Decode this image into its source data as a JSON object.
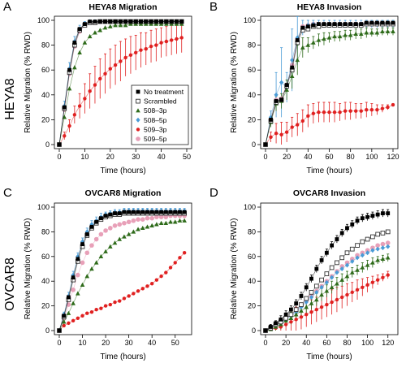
{
  "row_labels": [
    "HEYA8",
    "OVCAR8"
  ],
  "legend_labels": [
    "No treatment",
    "Scrambled",
    "508–3p",
    "508–5p",
    "509–3p",
    "509–5p"
  ],
  "colors": {
    "No treatment": "#000000",
    "Scrambled": "#333333",
    "508–3p": "#2e6b1a",
    "508–5p": "#4a9bd6",
    "509–3p": "#e02020",
    "509–5p": "#e8a0b8"
  },
  "chart_data": [
    {
      "type": "line",
      "panel": "A",
      "title": "HEYA8 Migration",
      "xlabel": "Time (hours)",
      "ylabel": "Relative Migration (% RWD)",
      "xlim": [
        0,
        50
      ],
      "ylim": [
        0,
        100
      ],
      "xticks": [
        0,
        10,
        20,
        30,
        40,
        50
      ],
      "yticks": [
        0,
        20,
        40,
        60,
        80,
        100
      ],
      "x": [
        0,
        2,
        4,
        6,
        8,
        10,
        12,
        14,
        16,
        18,
        20,
        22,
        24,
        26,
        28,
        30,
        32,
        34,
        36,
        38,
        40,
        42,
        44,
        46,
        48
      ],
      "series": [
        {
          "name": "No treatment",
          "values": [
            0,
            30,
            60,
            82,
            93,
            97,
            99,
            99,
            99,
            99,
            99,
            99,
            99,
            99,
            99,
            99,
            99,
            99,
            99,
            99,
            99,
            99,
            99,
            99,
            99
          ]
        },
        {
          "name": "Scrambled",
          "values": [
            0,
            29,
            58,
            80,
            92,
            96,
            98,
            98,
            99,
            99,
            99,
            99,
            99,
            99,
            99,
            99,
            99,
            99,
            99,
            99,
            99,
            99,
            99,
            99,
            99
          ]
        },
        {
          "name": "508–3p",
          "values": [
            0,
            22,
            45,
            62,
            74,
            82,
            87,
            90,
            92,
            94,
            95,
            96,
            96,
            96,
            97,
            97,
            97,
            97,
            97,
            97,
            97,
            97,
            97,
            97,
            97
          ]
        },
        {
          "name": "508–5p",
          "values": [
            0,
            31,
            61,
            83,
            93,
            97,
            99,
            99,
            99,
            99,
            99,
            99,
            99,
            99,
            99,
            99,
            99,
            99,
            99,
            99,
            99,
            99,
            99,
            99,
            99
          ]
        },
        {
          "name": "509–3p",
          "values": [
            0,
            7,
            15,
            24,
            31,
            37,
            43,
            48,
            53,
            57,
            61,
            64,
            67,
            70,
            72,
            74,
            76,
            77,
            79,
            80,
            82,
            83,
            84,
            85,
            86
          ]
        },
        {
          "name": "509–5p",
          "values": [
            0,
            28,
            57,
            79,
            91,
            96,
            98,
            98,
            99,
            99,
            99,
            99,
            99,
            99,
            99,
            99,
            99,
            99,
            99,
            99,
            99,
            99,
            99,
            99,
            99
          ]
        }
      ],
      "errors": [
        {
          "name": "508–5p",
          "values": [
            0,
            4,
            5,
            4,
            3,
            2,
            1,
            1,
            1,
            1,
            1,
            1,
            1,
            1,
            1,
            1,
            1,
            1,
            1,
            1,
            1,
            1,
            1,
            1,
            1
          ]
        },
        {
          "name": "509–3p",
          "values": [
            0,
            3,
            5,
            7,
            10,
            12,
            14,
            15,
            16,
            16,
            16,
            16,
            16,
            15,
            15,
            14,
            14,
            13,
            13,
            13,
            12,
            12,
            12,
            12,
            12
          ]
        }
      ],
      "legend": "bottom-right"
    },
    {
      "type": "line",
      "panel": "B",
      "title": "HEYA8 Invasion",
      "xlabel": "Time (hours)",
      "ylabel": "Relative Migration (% RWD)",
      "xlim": [
        0,
        120
      ],
      "ylim": [
        0,
        100
      ],
      "xticks": [
        0,
        20,
        40,
        60,
        80,
        100,
        120
      ],
      "yticks": [
        0,
        20,
        40,
        60,
        80,
        100
      ],
      "x": [
        0,
        5,
        10,
        15,
        20,
        25,
        30,
        35,
        40,
        45,
        50,
        55,
        60,
        65,
        70,
        75,
        80,
        85,
        90,
        95,
        100,
        105,
        110,
        115,
        120
      ],
      "series": [
        {
          "name": "No treatment",
          "values": [
            0,
            20,
            35,
            36,
            48,
            62,
            84,
            94,
            95,
            96,
            97,
            97,
            97,
            97,
            97,
            97,
            97,
            97,
            97,
            98,
            98,
            98,
            98,
            98,
            98
          ]
        },
        {
          "name": "Scrambled",
          "values": [
            0,
            19,
            34,
            36,
            47,
            60,
            82,
            92,
            93,
            95,
            95,
            96,
            96,
            96,
            96,
            96,
            96,
            96,
            96,
            97,
            97,
            97,
            97,
            97,
            97
          ]
        },
        {
          "name": "508–3p",
          "values": [
            0,
            18,
            33,
            35,
            44,
            55,
            68,
            78,
            80,
            82,
            84,
            85,
            86,
            87,
            87,
            88,
            88,
            89,
            89,
            90,
            90,
            90,
            91,
            91,
            91
          ]
        },
        {
          "name": "508–5p",
          "values": [
            0,
            22,
            40,
            50,
            46,
            68,
            86,
            94,
            96,
            97,
            97,
            97,
            97,
            97,
            97,
            97,
            97,
            97,
            97,
            97,
            97,
            97,
            97,
            97,
            97
          ]
        },
        {
          "name": "509–3p",
          "values": [
            0,
            6,
            9,
            8,
            10,
            14,
            16,
            19,
            23,
            25,
            26,
            26,
            26,
            26,
            26,
            27,
            27,
            27,
            27,
            28,
            28,
            28,
            29,
            30,
            32
          ]
        },
        {
          "name": "509–5p",
          "values": [
            0,
            20,
            36,
            37,
            48,
            64,
            85,
            95,
            96,
            97,
            97,
            97,
            97,
            97,
            97,
            97,
            97,
            97,
            97,
            97,
            97,
            97,
            97,
            97,
            97
          ]
        }
      ],
      "errors": [
        {
          "name": "508–5p",
          "values": [
            0,
            5,
            18,
            28,
            12,
            25,
            22,
            6,
            4,
            3,
            3,
            3,
            3,
            3,
            3,
            3,
            3,
            3,
            3,
            3,
            3,
            3,
            3,
            3,
            3
          ]
        },
        {
          "name": "509–3p",
          "values": [
            0,
            4,
            8,
            10,
            8,
            8,
            9,
            9,
            9,
            8,
            8,
            8,
            8,
            8,
            7,
            7,
            7,
            6,
            6,
            6,
            5,
            4,
            3,
            2,
            1
          ]
        },
        {
          "name": "508–3p",
          "values": [
            0,
            4,
            6,
            6,
            8,
            10,
            12,
            8,
            6,
            5,
            5,
            5,
            4,
            4,
            4,
            4,
            4,
            4,
            4,
            4,
            3,
            3,
            3,
            3,
            3
          ]
        }
      ],
      "legend": "none"
    },
    {
      "type": "line",
      "panel": "C",
      "title": "OVCAR8 Migration",
      "xlabel": "Time (hours)",
      "ylabel": "Relative Migration (% RWD)",
      "xlim": [
        0,
        55
      ],
      "ylim": [
        0,
        100
      ],
      "xticks": [
        0,
        10,
        20,
        30,
        40,
        50
      ],
      "yticks": [
        0,
        20,
        40,
        60,
        80,
        100
      ],
      "x": [
        0,
        2,
        4,
        6,
        8,
        10,
        12,
        14,
        16,
        18,
        20,
        22,
        24,
        26,
        28,
        30,
        32,
        34,
        36,
        38,
        40,
        42,
        44,
        46,
        48,
        50,
        52,
        54
      ],
      "series": [
        {
          "name": "No treatment",
          "values": [
            0,
            12,
            27,
            43,
            58,
            70,
            78,
            84,
            88,
            91,
            93,
            94,
            95,
            95,
            96,
            96,
            96,
            96,
            96,
            96,
            96,
            96,
            96,
            96,
            96,
            96,
            96,
            96
          ]
        },
        {
          "name": "Scrambled",
          "values": [
            0,
            11,
            25,
            41,
            56,
            68,
            77,
            83,
            87,
            90,
            92,
            93,
            94,
            94,
            95,
            95,
            95,
            95,
            95,
            95,
            95,
            95,
            95,
            95,
            95,
            95,
            95,
            95
          ]
        },
        {
          "name": "508–3p",
          "values": [
            0,
            7,
            14,
            22,
            30,
            37,
            44,
            50,
            55,
            60,
            64,
            68,
            71,
            74,
            76,
            78,
            80,
            82,
            83,
            84,
            85,
            86,
            87,
            87,
            88,
            88,
            89,
            89
          ]
        },
        {
          "name": "508–5p",
          "values": [
            0,
            13,
            28,
            45,
            60,
            72,
            80,
            86,
            89,
            92,
            94,
            95,
            96,
            96,
            97,
            97,
            97,
            97,
            97,
            97,
            97,
            97,
            97,
            97,
            97,
            97,
            97,
            97
          ]
        },
        {
          "name": "509–3p",
          "values": [
            0,
            4,
            6,
            8,
            10,
            12,
            14,
            15,
            17,
            18,
            20,
            21,
            23,
            24,
            26,
            28,
            30,
            32,
            34,
            36,
            38,
            41,
            44,
            47,
            51,
            55,
            59,
            63
          ]
        },
        {
          "name": "509–5p",
          "values": [
            0,
            10,
            21,
            33,
            45,
            55,
            63,
            69,
            74,
            78,
            81,
            83,
            85,
            86,
            87,
            88,
            89,
            90,
            90,
            91,
            91,
            92,
            92,
            92,
            93,
            93,
            93,
            93
          ]
        }
      ],
      "errors": [
        {
          "name": "508–5p",
          "values": [
            0,
            2,
            3,
            3,
            3,
            3,
            3,
            3,
            3,
            3,
            2,
            2,
            2,
            2,
            2,
            2,
            2,
            2,
            2,
            2,
            2,
            2,
            2,
            2,
            2,
            2,
            2,
            2
          ]
        }
      ],
      "legend": "none"
    },
    {
      "type": "line",
      "panel": "D",
      "title": "OVCAR8 Invasion",
      "xlabel": "Time (hours)",
      "ylabel": "Relative Migration (% RWD)",
      "xlim": [
        0,
        125
      ],
      "ylim": [
        0,
        100
      ],
      "xticks": [
        0,
        20,
        40,
        60,
        80,
        100,
        120
      ],
      "yticks": [
        0,
        20,
        40,
        60,
        80,
        100
      ],
      "x": [
        0,
        5,
        10,
        15,
        20,
        25,
        30,
        35,
        40,
        45,
        50,
        55,
        60,
        65,
        70,
        75,
        80,
        85,
        90,
        95,
        100,
        105,
        110,
        115,
        120
      ],
      "series": [
        {
          "name": "No treatment",
          "values": [
            0,
            3,
            6,
            9,
            13,
            17,
            22,
            28,
            35,
            42,
            50,
            57,
            63,
            69,
            74,
            79,
            83,
            86,
            89,
            91,
            92,
            93,
            94,
            95,
            95
          ]
        },
        {
          "name": "Scrambled",
          "values": [
            0,
            2,
            5,
            7,
            10,
            13,
            17,
            21,
            26,
            31,
            36,
            41,
            46,
            51,
            55,
            59,
            63,
            66,
            69,
            72,
            74,
            76,
            78,
            79,
            80
          ]
        },
        {
          "name": "508–3p",
          "values": [
            0,
            1,
            3,
            5,
            8,
            10,
            13,
            16,
            19,
            22,
            25,
            29,
            32,
            35,
            38,
            41,
            44,
            47,
            49,
            51,
            53,
            55,
            57,
            58,
            59
          ]
        },
        {
          "name": "508–5p",
          "values": [
            0,
            2,
            4,
            6,
            9,
            12,
            15,
            19,
            23,
            27,
            31,
            35,
            39,
            43,
            47,
            50,
            53,
            56,
            59,
            61,
            63,
            65,
            66,
            67,
            68
          ]
        },
        {
          "name": "509–3p",
          "values": [
            0,
            1,
            2,
            3,
            5,
            7,
            9,
            11,
            13,
            15,
            17,
            19,
            21,
            23,
            25,
            27,
            29,
            31,
            33,
            35,
            37,
            39,
            41,
            43,
            45
          ]
        },
        {
          "name": "509–5p",
          "values": [
            0,
            2,
            4,
            7,
            10,
            13,
            16,
            20,
            24,
            28,
            32,
            36,
            40,
            44,
            48,
            52,
            55,
            58,
            61,
            63,
            65,
            67,
            69,
            70,
            71
          ]
        }
      ],
      "errors": [
        {
          "name": "No treatment",
          "values": [
            0,
            2,
            2,
            3,
            3,
            3,
            3,
            3,
            3,
            3,
            3,
            3,
            3,
            3,
            3,
            3,
            3,
            3,
            3,
            3,
            3,
            3,
            3,
            3,
            3
          ]
        },
        {
          "name": "509–3p",
          "values": [
            0,
            3,
            5,
            7,
            8,
            9,
            10,
            10,
            10,
            10,
            10,
            10,
            10,
            10,
            10,
            9,
            9,
            8,
            8,
            7,
            6,
            5,
            4,
            3,
            3
          ]
        },
        {
          "name": "508–3p",
          "values": [
            0,
            2,
            3,
            4,
            4,
            5,
            5,
            5,
            5,
            5,
            5,
            5,
            5,
            5,
            5,
            5,
            4,
            4,
            4,
            4,
            4,
            4,
            3,
            3,
            3
          ]
        }
      ],
      "legend": "none"
    }
  ]
}
